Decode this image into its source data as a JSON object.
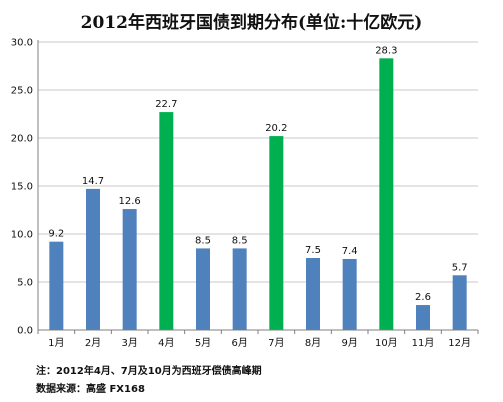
{
  "chart_data": {
    "type": "bar",
    "title": "2012年西班牙国债到期分布(单位:十亿欧元)",
    "categories": [
      "1月",
      "2月",
      "3月",
      "4月",
      "5月",
      "6月",
      "7月",
      "8月",
      "9月",
      "10月",
      "11月",
      "12月"
    ],
    "values": [
      9.2,
      14.7,
      12.6,
      22.7,
      8.5,
      8.5,
      20.2,
      7.5,
      7.4,
      28.3,
      2.6,
      5.7
    ],
    "data_labels": [
      "9.2",
      "14.7",
      "12.6",
      "22.7",
      "8.5",
      "8.5",
      "20.2",
      "7.5",
      "7.4",
      "28.3",
      "2.6",
      "5.7"
    ],
    "highlight": [
      false,
      false,
      false,
      true,
      false,
      false,
      true,
      false,
      false,
      true,
      false,
      false
    ],
    "ylim": [
      0,
      30
    ],
    "yticks": [
      "0.0",
      "5.0",
      "10.0",
      "15.0",
      "20.0",
      "25.0",
      "30.0"
    ],
    "grid": true,
    "colors": {
      "normal": "#4f81bd",
      "highlight": "#00b050",
      "grid": "#c8c8c8",
      "axis": "#7f7f7f"
    }
  },
  "notes": {
    "note_1": "注：2012年4月、7月及10月为西班牙偿债高峰期",
    "note_2": "数据来源：高盛 FX168"
  }
}
